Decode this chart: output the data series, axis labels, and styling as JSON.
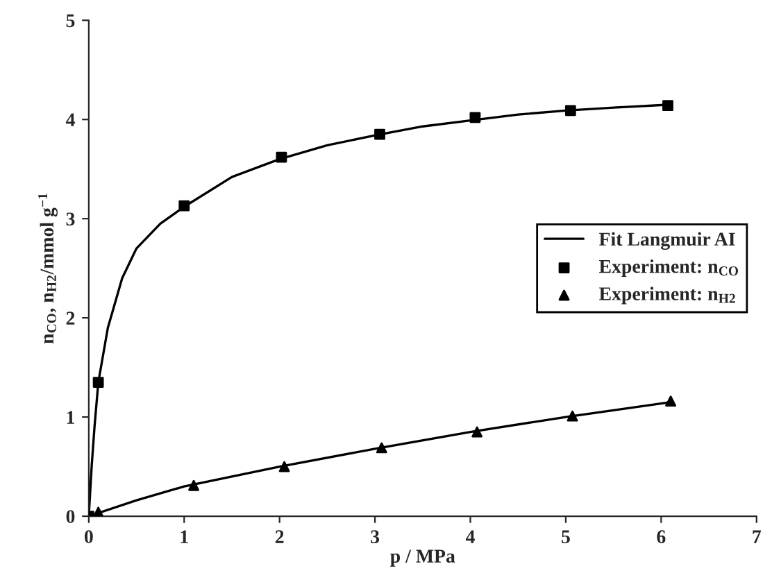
{
  "chart_data": {
    "type": "scatter",
    "xlabel": "p / MPa",
    "ylabel": "n$_{CO}$, n$_{H2}$/mmol g$^{−1}$",
    "xlim": [
      0,
      7
    ],
    "ylim": [
      0,
      5
    ],
    "xticks": [
      0,
      1,
      2,
      3,
      4,
      5,
      6,
      7
    ],
    "yticks": [
      0,
      1,
      2,
      3,
      4,
      5
    ],
    "grid": false,
    "legend": "right",
    "series": [
      {
        "name": "Fit Langmuir AI",
        "type": "line",
        "color": "#000000",
        "marker": "none",
        "line_style": "solid",
        "x": [
          0,
          0.03,
          0.06,
          0.1,
          0.2,
          0.35,
          0.5,
          0.75,
          1,
          1.5,
          2,
          2.5,
          3,
          3.5,
          4,
          4.5,
          5,
          5.5,
          6.1
        ],
        "values": [
          0,
          0.5,
          0.9,
          1.35,
          1.9,
          2.4,
          2.7,
          2.95,
          3.12,
          3.42,
          3.6,
          3.74,
          3.84,
          3.93,
          3.99,
          4.05,
          4.09,
          4.12,
          4.15
        ]
      },
      {
        "type": "line",
        "color": "#000000",
        "marker": "none",
        "line_style": "solid",
        "x": [
          0,
          0.5,
          1,
          2,
          3,
          4,
          5,
          6.1
        ],
        "values": [
          0,
          0.16,
          0.3,
          0.5,
          0.68,
          0.85,
          1.0,
          1.15
        ]
      },
      {
        "name": "Experiment: n$_{CO}$",
        "color": "#000000",
        "marker": "square",
        "x": [
          0,
          0.1,
          1.0,
          2.02,
          3.05,
          4.05,
          5.05,
          6.07
        ],
        "values": [
          0,
          1.35,
          3.13,
          3.62,
          3.85,
          4.02,
          4.09,
          4.14
        ]
      },
      {
        "name": "Experiment: n$_{H2}$",
        "color": "#000000",
        "marker": "triangle",
        "x": [
          0.1,
          1.1,
          2.05,
          3.07,
          4.07,
          5.07,
          6.1
        ],
        "values": [
          0.04,
          0.31,
          0.5,
          0.69,
          0.85,
          1.01,
          1.16
        ]
      }
    ]
  }
}
